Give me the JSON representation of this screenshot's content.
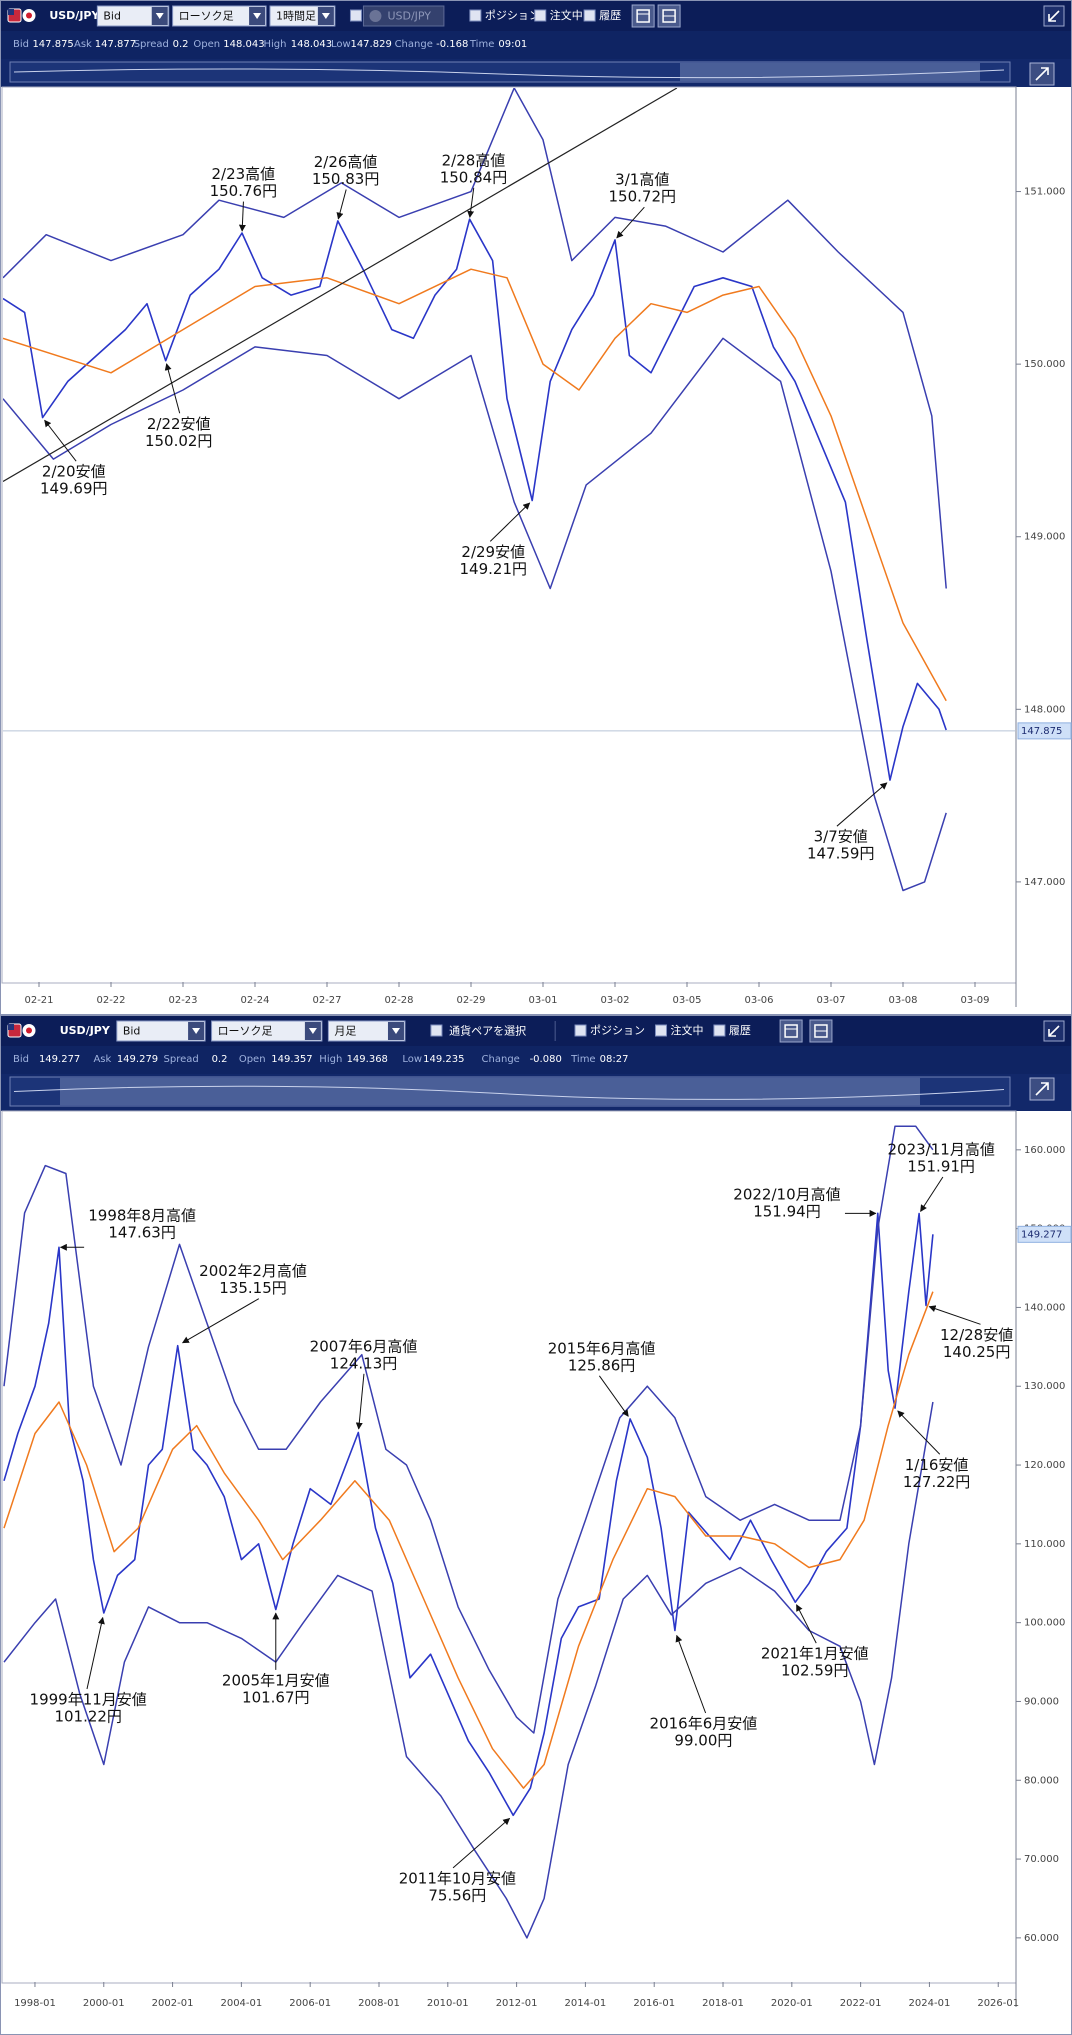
{
  "panels": [
    {
      "symbol": "USD/JPY",
      "dropdowns": [
        "Bid",
        "ローソク足",
        "1時間足"
      ],
      "pair_button": "USD/JPY",
      "options": [
        "ポジション",
        "注文中",
        "履歴"
      ],
      "info": [
        {
          "label": "Bid",
          "value": "147.875"
        },
        {
          "label": "Ask",
          "value": "147.877"
        },
        {
          "label": "Spread",
          "value": "0.2"
        },
        {
          "label": "Open",
          "value": "148.043"
        },
        {
          "label": "High",
          "value": "148.043"
        },
        {
          "label": "Low",
          "value": "147.829"
        },
        {
          "label": "Change",
          "value": "-0.168"
        },
        {
          "label": "Time",
          "value": "09:01"
        }
      ]
    },
    {
      "symbol": "USD/JPY",
      "dropdowns": [
        "Bid",
        "ローソク足",
        "月足"
      ],
      "pair_button": "通貨ペアを選択",
      "options": [
        "ポジション",
        "注文中",
        "履歴"
      ],
      "info": [
        {
          "label": "Bid",
          "value": "149.277"
        },
        {
          "label": "Ask",
          "value": "149.279"
        },
        {
          "label": "Spread",
          "value": "0.2"
        },
        {
          "label": "Open",
          "value": "149.357"
        },
        {
          "label": "High",
          "value": "149.368"
        },
        {
          "label": "Low",
          "value": "149.235"
        },
        {
          "label": "Change",
          "value": "-0.080"
        },
        {
          "label": "Time",
          "value": "08:27"
        }
      ]
    }
  ],
  "chart_data": [
    {
      "type": "line",
      "xlim": [
        -0.5,
        13.5
      ],
      "xticks": [
        {
          "value": 0,
          "label": "02-21"
        },
        {
          "value": 1,
          "label": "02-22"
        },
        {
          "value": 2,
          "label": "02-23"
        },
        {
          "value": 3,
          "label": "02-24"
        },
        {
          "value": 4,
          "label": "02-27"
        },
        {
          "value": 5,
          "label": "02-28"
        },
        {
          "value": 6,
          "label": "02-29"
        },
        {
          "value": 7,
          "label": "03-01"
        },
        {
          "value": 8,
          "label": "03-02"
        },
        {
          "value": 9,
          "label": "03-05"
        },
        {
          "value": 10,
          "label": "03-06"
        },
        {
          "value": 11,
          "label": "03-07"
        },
        {
          "value": 12,
          "label": "03-08"
        },
        {
          "value": 13,
          "label": "03-09"
        }
      ],
      "ylim": [
        146.42,
        151.6
      ],
      "yticks": [
        {
          "value": 147,
          "label": "147.000"
        },
        {
          "value": 148,
          "label": "148.000"
        },
        {
          "value": 149,
          "label": "149.000"
        },
        {
          "value": 150,
          "label": "150.000"
        },
        {
          "value": 151,
          "label": "151.000"
        }
      ],
      "last_price": 147.875,
      "series": [
        {
          "color": "#2a36c8",
          "x": [
            -0.5,
            -0.2,
            0.05,
            0.4,
            0.8,
            1.2,
            1.5,
            1.76,
            2.1,
            2.5,
            2.82,
            3.1,
            3.5,
            3.9,
            4.15,
            4.5,
            4.9,
            5.2,
            5.5,
            5.8,
            5.98,
            6.3,
            6.5,
            6.85,
            7.1,
            7.4,
            7.7,
            8.0,
            8.2,
            8.5,
            8.8,
            9.1,
            9.5,
            9.9,
            10.2,
            10.5,
            10.8,
            11.2,
            11.5,
            11.82,
            12.0,
            12.2,
            12.5,
            12.6
          ],
          "values": [
            150.38,
            150.3,
            149.69,
            149.9,
            150.05,
            150.2,
            150.35,
            150.02,
            150.4,
            150.55,
            150.76,
            150.5,
            150.4,
            150.45,
            150.83,
            150.55,
            150.2,
            150.15,
            150.4,
            150.55,
            150.84,
            150.6,
            149.8,
            149.21,
            149.9,
            150.2,
            150.4,
            150.72,
            150.05,
            149.95,
            150.2,
            150.45,
            150.5,
            150.45,
            150.1,
            149.9,
            149.6,
            149.2,
            148.4,
            147.59,
            147.9,
            148.15,
            148.0,
            147.88
          ]
        },
        {
          "color": "#f07a1e",
          "x": [
            -0.5,
            1,
            2,
            3,
            4,
            5,
            6,
            6.5,
            7,
            7.5,
            8,
            8.5,
            9,
            9.5,
            10,
            10.5,
            11,
            11.5,
            12,
            12.6
          ],
          "values": [
            150.15,
            149.95,
            150.2,
            150.45,
            150.5,
            150.35,
            150.55,
            150.5,
            150.0,
            149.85,
            150.15,
            150.35,
            150.3,
            150.4,
            150.45,
            150.15,
            149.7,
            149.1,
            148.5,
            148.05
          ]
        },
        {
          "color": "#3a3fb0",
          "x": [
            -0.5,
            0.1,
            1,
            2,
            2.5,
            3.4,
            4.2,
            5,
            6,
            6.6,
            7,
            7.4,
            8,
            8.7,
            9.5,
            10.4,
            11.1,
            12,
            12.4,
            12.6
          ],
          "values": [
            150.5,
            150.75,
            150.6,
            150.75,
            150.95,
            150.85,
            151.05,
            150.85,
            151.0,
            151.6,
            151.3,
            150.6,
            150.85,
            150.8,
            150.65,
            150.95,
            150.65,
            150.3,
            149.7,
            148.7
          ]
        },
        {
          "color": "#3a3fb0",
          "x": [
            -0.5,
            0.2,
            1,
            2,
            3,
            4,
            5,
            6,
            6.6,
            7.1,
            7.6,
            8.5,
            9.5,
            10.3,
            11,
            11.6,
            12,
            12.3,
            12.6
          ],
          "values": [
            149.8,
            149.45,
            149.65,
            149.85,
            150.1,
            150.05,
            149.8,
            150.05,
            149.2,
            148.7,
            149.3,
            149.6,
            150.15,
            149.9,
            148.8,
            147.5,
            146.95,
            147.0,
            147.4
          ]
        }
      ],
      "trendline": {
        "x": [
          -0.5,
          8.86
        ],
        "values": [
          149.32,
          151.6
        ]
      },
      "annotations": [
        {
          "label": "2/20安値",
          "value_label": "149.69円",
          "x": 0.05,
          "value": 149.69
        },
        {
          "label": "2/22安値",
          "value_label": "150.02円",
          "x": 1.76,
          "value": 150.02
        },
        {
          "label": "2/23高値",
          "value_label": "150.76円",
          "x": 2.82,
          "value": 150.76
        },
        {
          "label": "2/26高値",
          "value_label": "150.83円",
          "x": 4.15,
          "value": 150.83
        },
        {
          "label": "2/28高値",
          "value_label": "150.84円",
          "x": 5.98,
          "value": 150.84
        },
        {
          "label": "2/29安値",
          "value_label": "149.21円",
          "x": 6.85,
          "value": 149.21
        },
        {
          "label": "3/1高値",
          "value_label": "150.72円",
          "x": 8.0,
          "value": 150.72
        },
        {
          "label": "3/7安値",
          "value_label": "147.59円",
          "x": 11.82,
          "value": 147.59
        }
      ]
    },
    {
      "type": "line",
      "xlim": [
        1997.1,
        2026.4
      ],
      "xticks": [
        {
          "value": 1998,
          "label": "1998-01"
        },
        {
          "value": 2000,
          "label": "2000-01"
        },
        {
          "value": 2002,
          "label": "2002-01"
        },
        {
          "value": 2004,
          "label": "2004-01"
        },
        {
          "value": 2006,
          "label": "2006-01"
        },
        {
          "value": 2008,
          "label": "2008-01"
        },
        {
          "value": 2010,
          "label": "2010-01"
        },
        {
          "value": 2012,
          "label": "2012-01"
        },
        {
          "value": 2014,
          "label": "2014-01"
        },
        {
          "value": 2016,
          "label": "2016-01"
        },
        {
          "value": 2018,
          "label": "2018-01"
        },
        {
          "value": 2020,
          "label": "2020-01"
        },
        {
          "value": 2022,
          "label": "2022-01"
        },
        {
          "value": 2024,
          "label": "2024-01"
        },
        {
          "value": 2026,
          "label": "2026-01"
        }
      ],
      "ylim": [
        54.4,
        164.8
      ],
      "yticks": [
        {
          "value": 60,
          "label": "60.000"
        },
        {
          "value": 70,
          "label": "70.000"
        },
        {
          "value": 80,
          "label": "80.000"
        },
        {
          "value": 90,
          "label": "90.000"
        },
        {
          "value": 100,
          "label": "100.000"
        },
        {
          "value": 110,
          "label": "110.000"
        },
        {
          "value": 120,
          "label": "120.000"
        },
        {
          "value": 130,
          "label": "130.000"
        },
        {
          "value": 140,
          "label": "140.000"
        },
        {
          "value": 150,
          "label": "150.000"
        },
        {
          "value": 160,
          "label": "160.000"
        }
      ],
      "last_price": 149.277,
      "series": [
        {
          "color": "#2a36c8",
          "x": [
            1997.1,
            1997.5,
            1998.0,
            1998.4,
            1998.7,
            1999.0,
            1999.4,
            1999.7,
            2000.0,
            2000.4,
            2000.9,
            2001.3,
            2001.7,
            2002.15,
            2002.6,
            2003.0,
            2003.5,
            2004.0,
            2004.5,
            2005.0,
            2005.5,
            2006.0,
            2006.6,
            2007.4,
            2007.9,
            2008.4,
            2008.9,
            2009.5,
            2010.0,
            2010.6,
            2011.2,
            2011.9,
            2012.4,
            2012.8,
            2013.3,
            2013.8,
            2014.4,
            2014.9,
            2015.3,
            2015.8,
            2016.2,
            2016.6,
            2017.0,
            2017.6,
            2018.2,
            2018.8,
            2019.4,
            2020.1,
            2020.5,
            2021.0,
            2021.6,
            2022.0,
            2022.5,
            2022.8,
            2023.0,
            2023.4,
            2023.7,
            2023.9,
            2024.1
          ],
          "values": [
            118,
            124,
            130,
            138,
            147.63,
            125,
            118,
            108,
            101.22,
            106,
            108,
            120,
            122,
            135.15,
            122,
            120,
            116,
            108,
            110,
            101.67,
            110,
            117,
            115,
            124.13,
            112,
            105,
            93,
            96,
            91,
            85,
            81,
            75.56,
            79,
            86,
            98,
            102,
            103,
            118,
            125.86,
            121,
            112,
            99.0,
            114,
            111,
            108,
            113,
            108,
            102.59,
            105,
            109,
            112,
            125,
            151.94,
            132,
            127.22,
            142,
            151.91,
            140.25,
            149.28
          ]
        },
        {
          "color": "#f07a1e",
          "x": [
            1997.1,
            1998.0,
            1998.7,
            1999.5,
            2000.3,
            2001.0,
            2002.0,
            2002.7,
            2003.5,
            2004.5,
            2005.2,
            2006.3,
            2007.3,
            2008.3,
            2009.3,
            2010.3,
            2011.3,
            2012.2,
            2012.8,
            2013.8,
            2014.8,
            2015.8,
            2016.6,
            2017.5,
            2018.5,
            2019.5,
            2020.5,
            2021.4,
            2022.1,
            2022.8,
            2023.4,
            2024.1
          ],
          "values": [
            112,
            124,
            128,
            120,
            109,
            112,
            122,
            125,
            119,
            113,
            108,
            113,
            118,
            113,
            103,
            93,
            84,
            79,
            82,
            97,
            108,
            117,
            116,
            111,
            111,
            110,
            107,
            108,
            113,
            125,
            134,
            142
          ]
        },
        {
          "color": "#3a3fb0",
          "x": [
            1997.1,
            1997.7,
            1998.3,
            1998.9,
            1999.7,
            2000.5,
            2001.3,
            2002.2,
            2003.0,
            2003.8,
            2004.5,
            2005.3,
            2006.3,
            2007.5,
            2008.2,
            2008.8,
            2009.5,
            2010.3,
            2011.2,
            2012.0,
            2012.5,
            2013.2,
            2014.0,
            2015.0,
            2015.8,
            2016.6,
            2017.5,
            2018.5,
            2019.5,
            2020.5,
            2021.4,
            2022.0,
            2022.5,
            2023.0,
            2023.6,
            2024.1
          ],
          "values": [
            130,
            152,
            158,
            157,
            130,
            120,
            135,
            148,
            138,
            128,
            122,
            122,
            128,
            134,
            122,
            120,
            113,
            102,
            94,
            88,
            86,
            103,
            113,
            126,
            130,
            126,
            116,
            113,
            115,
            113,
            113,
            125,
            150,
            163,
            163,
            160
          ]
        },
        {
          "color": "#3a3fb0",
          "x": [
            1997.1,
            1998.0,
            1998.6,
            1999.3,
            2000.0,
            2000.6,
            2001.3,
            2002.2,
            2003.0,
            2004.0,
            2005.0,
            2005.8,
            2006.8,
            2007.8,
            2008.8,
            2009.8,
            2010.8,
            2011.7,
            2012.3,
            2012.8,
            2013.5,
            2014.3,
            2015.1,
            2015.8,
            2016.5,
            2017.5,
            2018.5,
            2019.5,
            2020.5,
            2021.4,
            2022.0,
            2022.4,
            2022.9,
            2023.4,
            2024.1
          ],
          "values": [
            95,
            100,
            103,
            91,
            82,
            95,
            102,
            100,
            100,
            98,
            95,
            100,
            106,
            104,
            83,
            78,
            71,
            65,
            60,
            65,
            82,
            92,
            103,
            106,
            101,
            105,
            107,
            104,
            99,
            97,
            90,
            82,
            93,
            110,
            128
          ]
        }
      ],
      "annotations": [
        {
          "label": "1998年8月高値",
          "value_label": "147.63円",
          "x": 1998.7,
          "value": 147.63
        },
        {
          "label": "2002年2月高値",
          "value_label": "135.15円",
          "x": 2002.15,
          "value": 135.15
        },
        {
          "label": "2007年6月高値",
          "value_label": "124.13円",
          "x": 2007.4,
          "value": 124.13
        },
        {
          "label": "2015年6月高値",
          "value_label": "125.86円",
          "x": 2015.3,
          "value": 125.86
        },
        {
          "label": "2022/10月高値",
          "value_label": "151.94円",
          "x": 2022.5,
          "value": 151.94
        },
        {
          "label": "2023/11月高値",
          "value_label": "151.91円",
          "x": 2023.7,
          "value": 151.91
        },
        {
          "label": "12/28安値",
          "value_label": "140.25円",
          "x": 2023.9,
          "value": 140.25
        },
        {
          "label": "1/16安値",
          "value_label": "127.22円",
          "x": 2023.0,
          "value": 127.22
        },
        {
          "label": "1999年11月安値",
          "value_label": "101.22円",
          "x": 2000.0,
          "value": 101.22
        },
        {
          "label": "2005年1月安値",
          "value_label": "101.67円",
          "x": 2005.0,
          "value": 101.67
        },
        {
          "label": "2011年10月安値",
          "value_label": "75.56円",
          "x": 2011.9,
          "value": 75.56
        },
        {
          "label": "2016年6月安値",
          "value_label": "99.00円",
          "x": 2016.6,
          "value": 99.0
        },
        {
          "label": "2021年1月安値",
          "value_label": "102.59円",
          "x": 2020.1,
          "value": 102.59
        }
      ]
    }
  ]
}
